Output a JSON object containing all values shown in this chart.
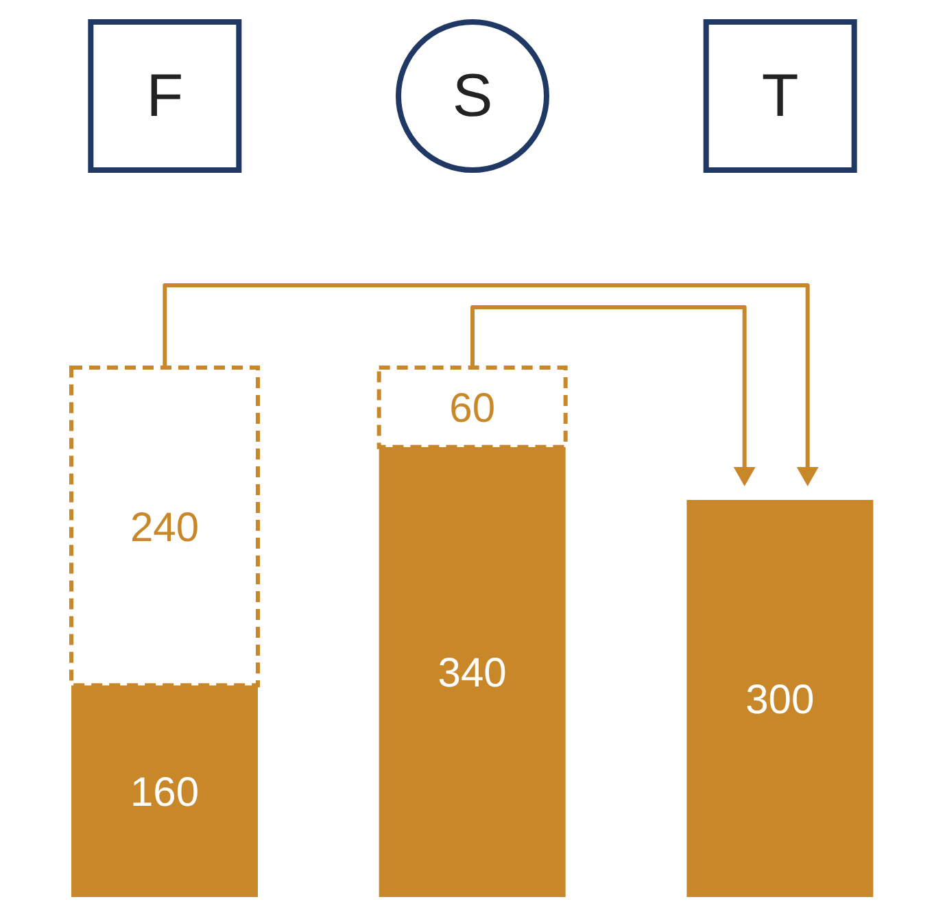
{
  "chart_data": {
    "type": "bar",
    "stacked": true,
    "categories": [
      "F",
      "S",
      "T"
    ],
    "data_labels": true,
    "series": [
      {
        "color": "#c8882a",
        "values": [
          160,
          340,
          300
        ]
      },
      {
        "color": "#c8882a",
        "line_style": "dashed",
        "values": [
          240,
          60,
          null
        ]
      }
    ]
  }
}
